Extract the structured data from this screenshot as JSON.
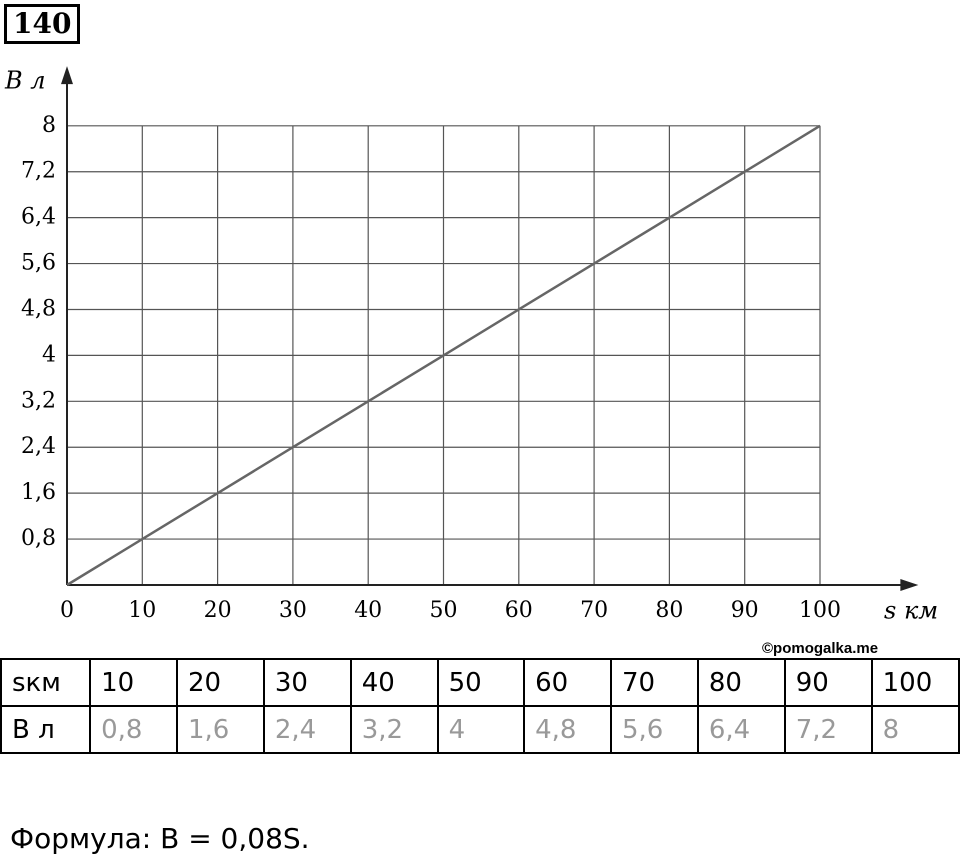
{
  "header": {
    "number": "140"
  },
  "chart_data": {
    "type": "line",
    "x_label": "s км",
    "y_label": "B л",
    "x": [
      0,
      10,
      20,
      30,
      40,
      50,
      60,
      70,
      80,
      90,
      100
    ],
    "series": [
      {
        "name": null,
        "color": "#666666",
        "values": [
          0,
          0.8,
          1.6,
          2.4,
          3.2,
          4,
          4.8,
          5.6,
          6.4,
          7.2,
          8
        ]
      }
    ],
    "xlim": [
      0,
      112
    ],
    "ylim": [
      0,
      8.9
    ],
    "xticks": [
      0,
      10,
      20,
      30,
      40,
      50,
      60,
      70,
      80,
      90,
      100
    ],
    "yticks": [
      {
        "value": 0.8,
        "label": "0,8"
      },
      {
        "value": 1.6,
        "label": "1,6"
      },
      {
        "value": 2.4,
        "label": "2,4"
      },
      {
        "value": 3.2,
        "label": "3,2"
      },
      4,
      {
        "value": 4.8,
        "label": "4,8"
      },
      {
        "value": 5.6,
        "label": "5,6"
      },
      {
        "value": 6.4,
        "label": "6,4"
      },
      {
        "value": 7.2,
        "label": "7,2"
      },
      8
    ],
    "grid": true
  },
  "watermark": "©pomogalka.me",
  "table": {
    "rows": [
      [
        "sкм",
        "10",
        "20",
        "30",
        "40",
        "50",
        "60",
        "70",
        "80",
        "90",
        "100"
      ],
      [
        "В л",
        "0,8",
        "1,6",
        "2,4",
        "3,2",
        "4",
        "4,8",
        "5,6",
        "6,4",
        "7,2",
        "8"
      ]
    ]
  },
  "formula": "Формула: B = 0,08S."
}
